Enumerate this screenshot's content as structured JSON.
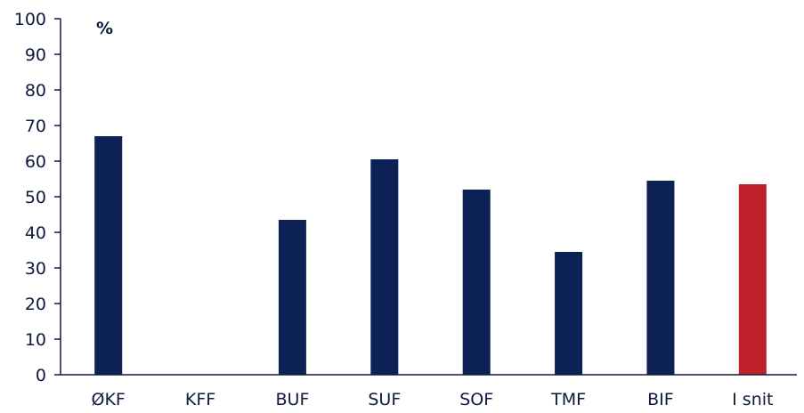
{
  "chart_data": {
    "type": "bar",
    "unit_label": "%",
    "categories": [
      "ØKF",
      "KFF",
      "BUF",
      "SUF",
      "SOF",
      "TMF",
      "BIF",
      "I snit"
    ],
    "values": [
      67,
      0,
      43.5,
      60.5,
      52,
      34.5,
      54.5,
      53.5
    ],
    "bar_colors": [
      "#0d2254",
      "#0d2254",
      "#0d2254",
      "#0d2254",
      "#0d2254",
      "#0d2254",
      "#0d2254",
      "#c0202a"
    ],
    "ylim": [
      0,
      100
    ],
    "yticks": [
      0,
      10,
      20,
      30,
      40,
      50,
      60,
      70,
      80,
      90,
      100
    ],
    "grid": false,
    "legend": "none"
  }
}
